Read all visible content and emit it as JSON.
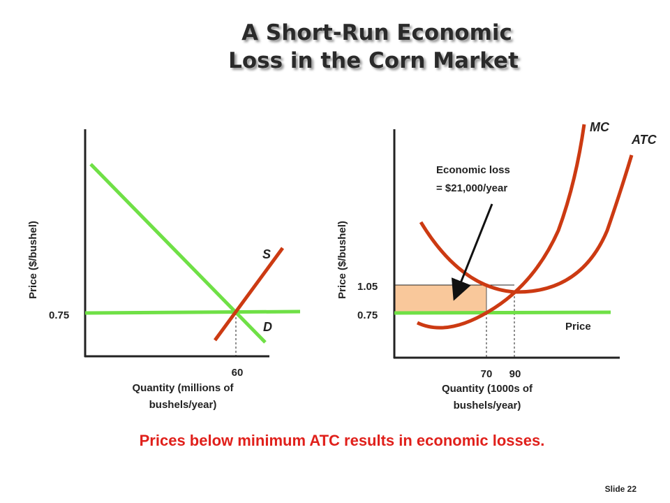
{
  "title": [
    "A Short-Run Economic",
    "Loss in the Corn Market"
  ],
  "left_panel": {
    "y_label": "Price ($/bushel)",
    "price_tick": "0.75",
    "quantity_tick": "60",
    "x_label": [
      "Quantity (millions of",
      "bushels/year)"
    ],
    "supply_label": "S",
    "demand_label": "D"
  },
  "right_panel": {
    "y_label": "Price ($/bushel)",
    "y_ticks": [
      "1.05",
      "0.75"
    ],
    "x_ticks": [
      "70",
      "90"
    ],
    "x_label": [
      "Quantity (1000s of",
      "bushels/year)"
    ],
    "mc_label": "MC",
    "atc_label": "ATC",
    "price_label": "Price",
    "annotation": [
      "Economic loss",
      "= $21,000/year"
    ]
  },
  "caption": "Prices below minimum ATC results in economic losses.",
  "footer": "Slide 22"
}
